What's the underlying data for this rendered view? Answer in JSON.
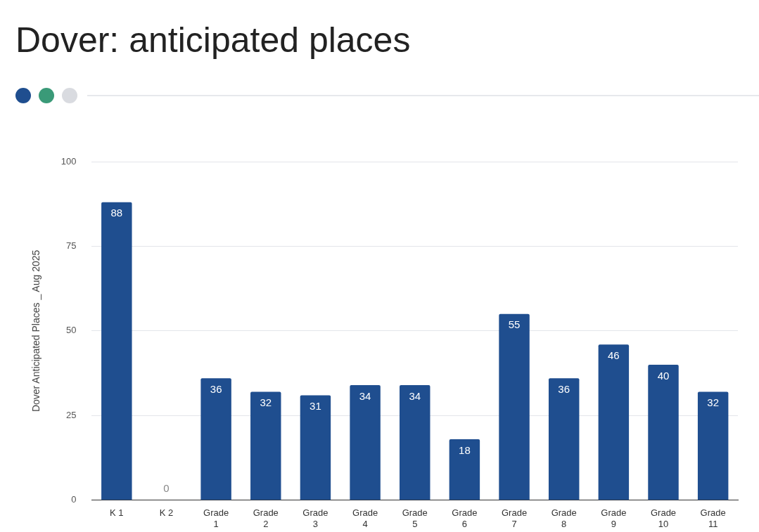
{
  "chart_data": {
    "type": "bar",
    "title": "Dover: anticipated places",
    "ylabel": "Dover Anticipated Places _ Aug 2025",
    "categories": [
      "K 1",
      "K 2",
      "Grade 1",
      "Grade 2",
      "Grade 3",
      "Grade 4",
      "Grade 5",
      "Grade 6",
      "Grade 7",
      "Grade 8",
      "Grade 9",
      "Grade 10",
      "Grade 11"
    ],
    "values": [
      88,
      0,
      36,
      32,
      31,
      34,
      34,
      18,
      55,
      36,
      46,
      40,
      32
    ],
    "color": "#1f4e8f",
    "ylim": [
      0,
      100
    ],
    "yticks": [
      0,
      25,
      50,
      75,
      100
    ],
    "grid": "y",
    "data_labels": true,
    "legend": false
  }
}
